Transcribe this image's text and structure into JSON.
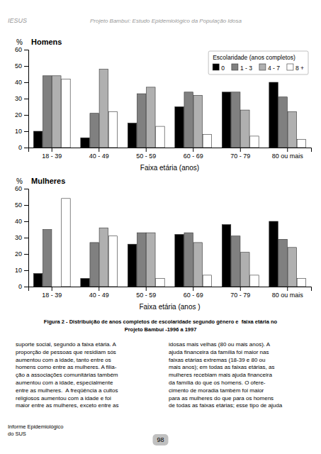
{
  "header_left": "IESUS",
  "header_title": "Projeto Bambuí: Estudo Epidemiológico da População Idosa",
  "caption": "Figura 2 - Distribuição de anos completos de escolaridade segundo gênero e  faixa etária no\nProjeto Bambuí -1996 a 1997",
  "body_text_left": "suporte social, segundo a faixa etária. A\nproporção de pessoas que residiam sós\naumentou com a idade, tanto entre os\nhomens como entre as mulheres. A filia-\nção a associações comunitárias também\naumentou com a idade, especialmente\nentre as mulheres.  A freqüência a cultos\nreligiosos aumentou com a idade e foi\nmaior entre as mulheres, exceto entre as",
  "body_text_right": "idosas mais velhas (80 ou mais anos). A\najuda financeira da família foi maior nas\nfaixas etárias extremas (18-39 e 80 ou\nmais anos); em todas as faixas etárias, as\nmulheres recebiam mais ajuda financeira\nda família do que os homens. O ofere-\ncimento de moradia também foi maior\npara as mulheres do que para os homens\nde todas as faixas etárias; esse tipo de ajuda",
  "footer": "Informe Epidemiológico\ndo SUS",
  "page_number": "98",
  "chart_data": [
    {
      "type": "bar",
      "title": "Homens",
      "xlabel": "Faixa etária (anos)",
      "ylabel": "%",
      "categories": [
        "18 - 39",
        "40 - 49",
        "50 - 59",
        "60 - 69",
        "70 - 79",
        "80 ou mais"
      ],
      "series": [
        {
          "name": "0",
          "color": "#000000",
          "values": [
            10,
            6,
            15,
            25,
            34,
            40
          ]
        },
        {
          "name": "1 - 3",
          "color": "#808080",
          "values": [
            44,
            21,
            33,
            34,
            34,
            31
          ]
        },
        {
          "name": "4 - 7",
          "color": "#b0b0b0",
          "values": [
            44,
            48,
            37,
            32,
            23,
            22
          ]
        },
        {
          "name": "8 +",
          "color": "#ffffff",
          "values": [
            42,
            22,
            13,
            8,
            7,
            5
          ]
        }
      ],
      "ylim": [
        0,
        60
      ],
      "yticks": [
        0,
        10,
        20,
        30,
        40,
        50,
        60
      ],
      "legend": "upper right",
      "legend_title": "Escolaridade (anos completos)"
    },
    {
      "type": "bar",
      "title": "Mulheres",
      "xlabel": "Faixa etária (anos )",
      "ylabel": "%",
      "categories": [
        "18 - 39",
        "40 - 49",
        "50 - 59",
        "60 - 69",
        "70 - 79",
        "80 ou mais"
      ],
      "series": [
        {
          "name": "0",
          "color": "#000000",
          "values": [
            8,
            5,
            26,
            32,
            38,
            40
          ]
        },
        {
          "name": "1 - 3",
          "color": "#808080",
          "values": [
            35,
            27,
            33,
            33,
            31,
            29
          ]
        },
        {
          "name": "4 - 7",
          "color": "#b0b0b0",
          "values": [
            0,
            36,
            33,
            27,
            21,
            24
          ]
        },
        {
          "name": "8 +",
          "color": "#ffffff",
          "values": [
            54,
            31,
            5,
            7,
            7,
            5
          ]
        }
      ],
      "ylim": [
        0,
        60
      ],
      "yticks": [
        0,
        10,
        20,
        30,
        40,
        50,
        60
      ],
      "legend": false
    }
  ]
}
